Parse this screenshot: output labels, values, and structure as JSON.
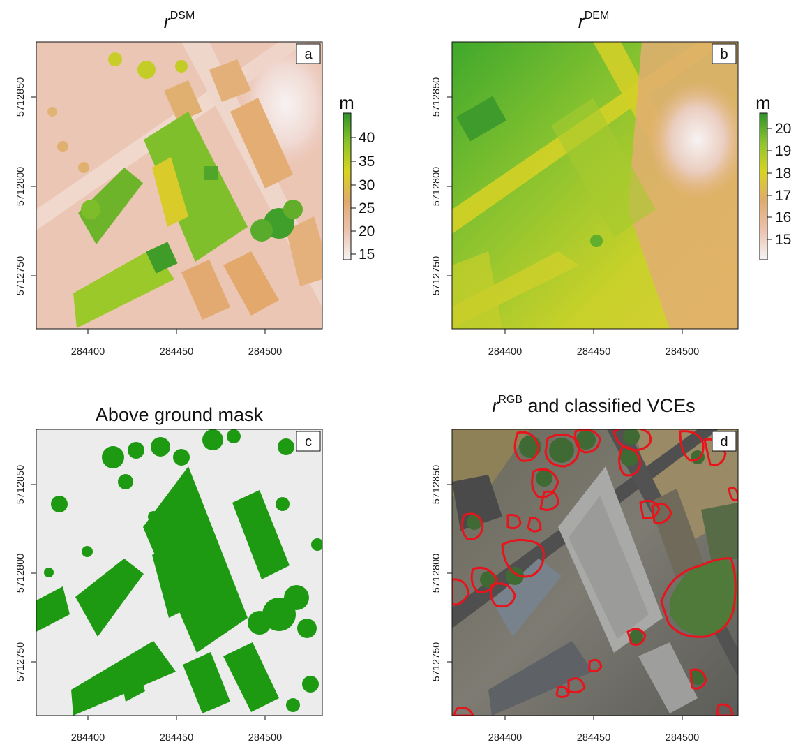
{
  "figure": {
    "panels": [
      {
        "id": "a",
        "title_base": "r",
        "title_sup": "DSM",
        "title_rest": "",
        "label": "a",
        "x_ticks": [
          "284400",
          "284450",
          "284500"
        ],
        "y_ticks": [
          "5712850",
          "5712800",
          "5712750"
        ],
        "colorbar": {
          "unit": "m",
          "ticks": [
            "40",
            "35",
            "30",
            "25",
            "20",
            "15"
          ]
        }
      },
      {
        "id": "b",
        "title_base": "r",
        "title_sup": "DEM",
        "title_rest": "",
        "label": "b",
        "x_ticks": [
          "284400",
          "284450",
          "284500"
        ],
        "y_ticks": [
          "5712850",
          "5712800",
          "5712750"
        ],
        "colorbar": {
          "unit": "m",
          "ticks": [
            "20",
            "19",
            "18",
            "17",
            "16",
            "15"
          ]
        }
      },
      {
        "id": "c",
        "title_base": "",
        "title_sup": "",
        "title_rest": "Above ground mask",
        "label": "c",
        "x_ticks": [
          "284400",
          "284450",
          "284500"
        ],
        "y_ticks": [
          "5712850",
          "5712800",
          "5712750"
        ]
      },
      {
        "id": "d",
        "title_base": "r",
        "title_sup": "RGB",
        "title_rest": " and classified VCEs",
        "label": "d",
        "x_ticks": [
          "284400",
          "284450",
          "284500"
        ],
        "y_ticks": [
          "5712850",
          "5712800",
          "5712750"
        ]
      }
    ],
    "colors": {
      "mask_green": "#1e9a12",
      "mask_background": "#ececec",
      "vce_outline": "#e8141c",
      "ramp_high": "#2f9a28",
      "ramp_mid": "#d8d21e",
      "ramp_low_mid": "#e1a77a",
      "ramp_low": "#f3f1f1"
    }
  }
}
